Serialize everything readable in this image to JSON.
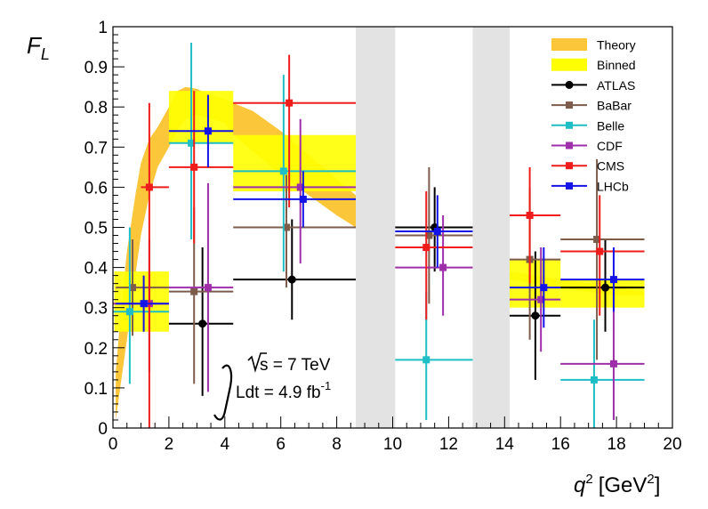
{
  "chart_data": {
    "type": "scatter",
    "ylabel": "F_L",
    "ylabel_main": "F",
    "ylabel_sub": "L",
    "xlabel_q": "q",
    "xlabel_sup": "2",
    "xlabel_unit_open": "[GeV",
    "xlabel_unit_sup": "2",
    "xlabel_unit_close": "]",
    "xlim": [
      0,
      20
    ],
    "ylim": [
      0,
      1
    ],
    "x_ticks": [
      "0",
      "2",
      "4",
      "6",
      "8",
      "10",
      "12",
      "14",
      "16",
      "18",
      "20"
    ],
    "y_ticks": [
      "0",
      "0.1",
      "0.2",
      "0.3",
      "0.4",
      "0.5",
      "0.6",
      "0.7",
      "0.8",
      "0.9",
      "1"
    ],
    "vetoed_regions": [
      [
        8.68,
        10.09
      ],
      [
        12.86,
        14.18
      ]
    ],
    "annotation": {
      "sqrt_s": "s = 7 TeV",
      "lumi": "Ldt = 4.9 fb",
      "lumi_sup": "-1"
    },
    "theory_band": {
      "x": [
        0.1,
        0.3,
        0.5,
        0.8,
        1.0,
        1.3,
        1.6,
        2.0,
        2.3,
        2.6,
        3.0,
        3.5,
        4.0,
        4.3,
        5.0,
        6.0,
        7.0,
        8.0,
        8.68
      ],
      "low": [
        0.02,
        0.12,
        0.22,
        0.38,
        0.48,
        0.58,
        0.65,
        0.7,
        0.74,
        0.77,
        0.78,
        0.77,
        0.76,
        0.73,
        0.69,
        0.63,
        0.58,
        0.53,
        0.5
      ],
      "high": [
        0.14,
        0.3,
        0.44,
        0.58,
        0.66,
        0.72,
        0.75,
        0.8,
        0.84,
        0.85,
        0.845,
        0.83,
        0.82,
        0.81,
        0.79,
        0.74,
        0.68,
        0.62,
        0.58
      ]
    },
    "theory_band_high_q2": {
      "x": [
        14.18,
        16.0,
        17.0,
        18.0,
        19.0
      ],
      "low": [
        0.37,
        0.35,
        0.34,
        0.33,
        0.33
      ],
      "high": [
        0.39,
        0.37,
        0.36,
        0.35,
        0.34
      ]
    },
    "binned_theory": [
      {
        "x0": 0.05,
        "x1": 2.0,
        "low": 0.24,
        "high": 0.39
      },
      {
        "x0": 2.0,
        "x1": 4.3,
        "low": 0.71,
        "high": 0.84
      },
      {
        "x0": 4.3,
        "x1": 8.68,
        "low": 0.59,
        "high": 0.73
      },
      {
        "x0": 14.18,
        "x1": 16.0,
        "low": 0.3,
        "high": 0.42
      },
      {
        "x0": 16.0,
        "x1": 19.0,
        "low": 0.3,
        "high": 0.37
      }
    ],
    "series": [
      {
        "name": "ATLAS",
        "color": "#000000",
        "marker": "circle",
        "points": [
          {
            "x": 3.2,
            "xlo": 2.0,
            "xhi": 4.3,
            "y": 0.26,
            "ylo": 0.08,
            "yhi": 0.45
          },
          {
            "x": 6.4,
            "xlo": 4.3,
            "xhi": 8.68,
            "y": 0.37,
            "ylo": 0.27,
            "yhi": 0.52
          },
          {
            "x": 11.5,
            "xlo": 10.09,
            "xhi": 12.86,
            "y": 0.5,
            "ylo": 0.39,
            "yhi": 0.6
          },
          {
            "x": 15.1,
            "xlo": 14.18,
            "xhi": 16.0,
            "y": 0.28,
            "ylo": 0.12,
            "yhi": 0.44
          },
          {
            "x": 17.6,
            "xlo": 16.0,
            "xhi": 19.0,
            "y": 0.35,
            "ylo": 0.24,
            "yhi": 0.47
          }
        ]
      },
      {
        "name": "BaBar",
        "color": "#7d5c4b",
        "marker": "square",
        "points": [
          {
            "x": 0.7,
            "xlo": 0.1,
            "xhi": 2.0,
            "y": 0.35,
            "ylo": 0.23,
            "yhi": 0.47
          },
          {
            "x": 2.9,
            "xlo": 2.0,
            "xhi": 4.3,
            "y": 0.34,
            "ylo": 0.11,
            "yhi": 0.55
          },
          {
            "x": 6.2,
            "xlo": 4.3,
            "xhi": 8.68,
            "y": 0.5,
            "ylo": 0.35,
            "yhi": 0.63
          },
          {
            "x": 11.3,
            "xlo": 10.09,
            "xhi": 12.86,
            "y": 0.48,
            "ylo": 0.31,
            "yhi": 0.65
          },
          {
            "x": 14.9,
            "xlo": 14.18,
            "xhi": 16.0,
            "y": 0.42,
            "ylo": 0.22,
            "yhi": 0.6
          },
          {
            "x": 17.3,
            "xlo": 16.0,
            "xhi": 19.0,
            "y": 0.47,
            "ylo": 0.17,
            "yhi": 0.67
          }
        ]
      },
      {
        "name": "Belle",
        "color": "#1fbec6",
        "marker": "square",
        "points": [
          {
            "x": 0.6,
            "xlo": 0.0,
            "xhi": 2.0,
            "y": 0.29,
            "ylo": 0.11,
            "yhi": 0.5
          },
          {
            "x": 2.8,
            "xlo": 2.0,
            "xhi": 4.3,
            "y": 0.71,
            "ylo": 0.47,
            "yhi": 0.96
          },
          {
            "x": 6.1,
            "xlo": 4.3,
            "xhi": 8.68,
            "y": 0.64,
            "ylo": 0.39,
            "yhi": 0.88
          },
          {
            "x": 11.2,
            "xlo": 10.09,
            "xhi": 12.86,
            "y": 0.17,
            "ylo": 0.02,
            "yhi": 0.34
          },
          {
            "x": 17.2,
            "xlo": 16.0,
            "xhi": 19.0,
            "y": 0.12,
            "ylo": 0.0,
            "yhi": 0.27
          }
        ]
      },
      {
        "name": "CDF",
        "color": "#9e2eaa",
        "marker": "square",
        "points": [
          {
            "x": 1.3,
            "xlo": 0.0,
            "xhi": 2.0,
            "y": 0.31,
            "ylo": 0.14,
            "yhi": 0.47
          },
          {
            "x": 3.4,
            "xlo": 2.0,
            "xhi": 4.3,
            "y": 0.35,
            "ylo": 0.09,
            "yhi": 0.61
          },
          {
            "x": 6.7,
            "xlo": 4.3,
            "xhi": 8.68,
            "y": 0.6,
            "ylo": 0.41,
            "yhi": 0.77
          },
          {
            "x": 11.8,
            "xlo": 10.09,
            "xhi": 12.86,
            "y": 0.4,
            "ylo": 0.28,
            "yhi": 0.53
          },
          {
            "x": 15.3,
            "xlo": 14.18,
            "xhi": 16.0,
            "y": 0.32,
            "ylo": 0.19,
            "yhi": 0.45
          },
          {
            "x": 17.9,
            "xlo": 16.0,
            "xhi": 19.0,
            "y": 0.16,
            "ylo": 0.02,
            "yhi": 0.36
          }
        ]
      },
      {
        "name": "CMS",
        "color": "#ef1c1c",
        "marker": "square",
        "points": [
          {
            "x": 1.3,
            "xlo": 1.0,
            "xhi": 2.0,
            "y": 0.6,
            "ylo": 0.0,
            "yhi": 0.81
          },
          {
            "x": 2.9,
            "xlo": 2.0,
            "xhi": 4.3,
            "y": 0.65,
            "ylo": 0.46,
            "yhi": 0.84
          },
          {
            "x": 6.3,
            "xlo": 4.3,
            "xhi": 8.68,
            "y": 0.81,
            "ylo": 0.55,
            "yhi": 0.93
          },
          {
            "x": 11.2,
            "xlo": 10.09,
            "xhi": 12.86,
            "y": 0.45,
            "ylo": 0.27,
            "yhi": 0.59
          },
          {
            "x": 14.9,
            "xlo": 14.18,
            "xhi": 16.0,
            "y": 0.53,
            "ylo": 0.36,
            "yhi": 0.65
          },
          {
            "x": 17.4,
            "xlo": 16.0,
            "xhi": 19.0,
            "y": 0.44,
            "ylo": 0.28,
            "yhi": 0.58
          }
        ]
      },
      {
        "name": "LHCb",
        "color": "#1414e6",
        "marker": "square",
        "points": [
          {
            "x": 1.1,
            "xlo": 0.1,
            "xhi": 2.0,
            "y": 0.31,
            "ylo": 0.24,
            "yhi": 0.38
          },
          {
            "x": 3.4,
            "xlo": 2.0,
            "xhi": 4.3,
            "y": 0.74,
            "ylo": 0.65,
            "yhi": 0.83
          },
          {
            "x": 6.8,
            "xlo": 4.3,
            "xhi": 8.68,
            "y": 0.57,
            "ylo": 0.5,
            "yhi": 0.64
          },
          {
            "x": 11.6,
            "xlo": 10.09,
            "xhi": 12.86,
            "y": 0.49,
            "ylo": 0.4,
            "yhi": 0.58
          },
          {
            "x": 15.4,
            "xlo": 14.18,
            "xhi": 16.0,
            "y": 0.35,
            "ylo": 0.25,
            "yhi": 0.45
          },
          {
            "x": 17.9,
            "xlo": 16.0,
            "xhi": 19.0,
            "y": 0.37,
            "ylo": 0.29,
            "yhi": 0.45
          }
        ]
      }
    ],
    "legend": {
      "placement": "top-right",
      "entries": [
        {
          "label": "Theory",
          "kind": "band",
          "color": "#fcc63a"
        },
        {
          "label": "Binned",
          "kind": "band",
          "color": "#ffff00"
        },
        {
          "label": "ATLAS",
          "kind": "marker",
          "color": "#000000",
          "marker": "circle"
        },
        {
          "label": "BaBar",
          "kind": "marker",
          "color": "#7d5c4b",
          "marker": "square"
        },
        {
          "label": "Belle",
          "kind": "marker",
          "color": "#1fbec6",
          "marker": "square"
        },
        {
          "label": "CDF",
          "kind": "marker",
          "color": "#9e2eaa",
          "marker": "square"
        },
        {
          "label": "CMS",
          "kind": "marker",
          "color": "#ef1c1c",
          "marker": "square"
        },
        {
          "label": "LHCb",
          "kind": "marker",
          "color": "#1414e6",
          "marker": "square"
        }
      ]
    },
    "colors": {
      "theory": "#fcc63a",
      "binned": "#ffff00",
      "veto": "#e3e3e3",
      "axis": "#000000"
    }
  }
}
